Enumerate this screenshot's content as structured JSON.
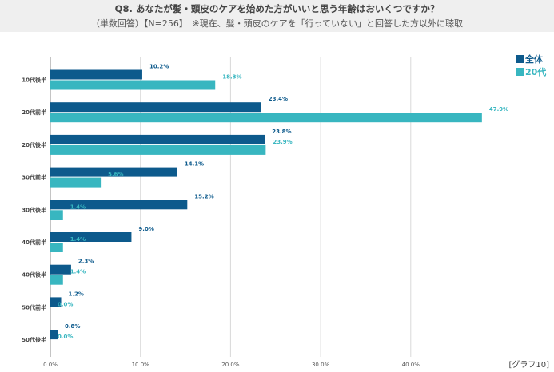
{
  "header": {
    "title": "Q8. あなたが髪・頭皮のケアを始めた方がいいと思う年齢はおいくつですか？",
    "subtitle": "（単数回答）【N=256】　※現在、髪・頭皮のケアを「行っていない」と回答した方以外に聴取"
  },
  "footnote": "[グラフ10]",
  "chart_data": {
    "type": "bar",
    "orientation": "horizontal",
    "categories": [
      "10代後半",
      "20代前半",
      "20代後半",
      "30代前半",
      "30代後半",
      "40代前半",
      "40代後半",
      "50代前半",
      "50代後半"
    ],
    "series": [
      {
        "name": "全体",
        "color": "#0d5a8c",
        "values": [
          10.2,
          23.4,
          23.8,
          14.1,
          15.2,
          9.0,
          2.3,
          1.2,
          0.8
        ]
      },
      {
        "name": "20代",
        "color": "#38b6c0",
        "values": [
          18.3,
          47.9,
          23.9,
          5.6,
          1.4,
          1.4,
          1.4,
          0.0,
          0.0
        ]
      }
    ],
    "xlim": [
      0,
      50
    ],
    "xticks": [
      "0.0%",
      "10.0%",
      "20.0%",
      "30.0%",
      "40.0%"
    ],
    "xtick_values": [
      0,
      10,
      20,
      30,
      40
    ],
    "value_suffix": "%",
    "grid": true,
    "legend": "top-right"
  }
}
